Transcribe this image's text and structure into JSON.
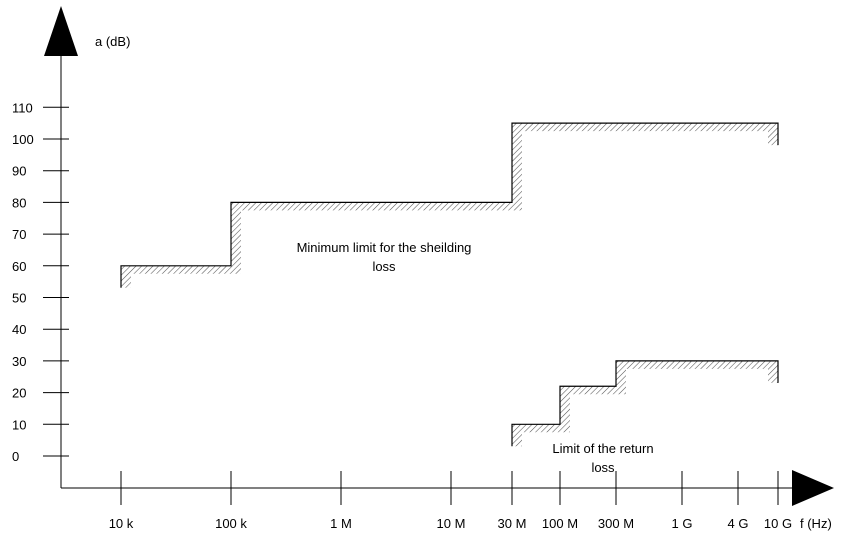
{
  "chart_data": {
    "type": "line",
    "title": "",
    "ylabel": "a (dB)",
    "xlabel": "f (Hz)",
    "y_ticks": [
      "110",
      "100",
      "90",
      "80",
      "70",
      "60",
      "50",
      "40",
      "30",
      "20",
      "10",
      "0"
    ],
    "x_ticks": [
      "10 k",
      "100 k",
      "1 M",
      "10 M",
      "30 M",
      "100 M",
      "300 M",
      "1 G",
      "4 G",
      "10 G"
    ],
    "series": [
      {
        "points": [
          {
            "x": "10 k",
            "y": 60
          },
          {
            "x": "100 k",
            "y": 60
          },
          {
            "x": "100 k",
            "y": 80
          },
          {
            "x": "30 M",
            "y": 80
          },
          {
            "x": "30 M",
            "y": 105
          },
          {
            "x": "10 G",
            "y": 105
          }
        ]
      },
      {
        "points": [
          {
            "x": "30 M",
            "y": 10
          },
          {
            "x": "100 M",
            "y": 10
          },
          {
            "x": "100 M",
            "y": 22
          },
          {
            "x": "300 M",
            "y": 22
          },
          {
            "x": "300 M",
            "y": 30
          },
          {
            "x": "10 G",
            "y": 30
          }
        ]
      }
    ],
    "annotations": [
      {
        "lines": [
          "Minimum limit for the sheilding",
          "loss"
        ]
      },
      {
        "lines": [
          "Limit of the return",
          "loss"
        ]
      }
    ],
    "colors": {
      "line": "#000000",
      "hatch": "#555555"
    }
  }
}
